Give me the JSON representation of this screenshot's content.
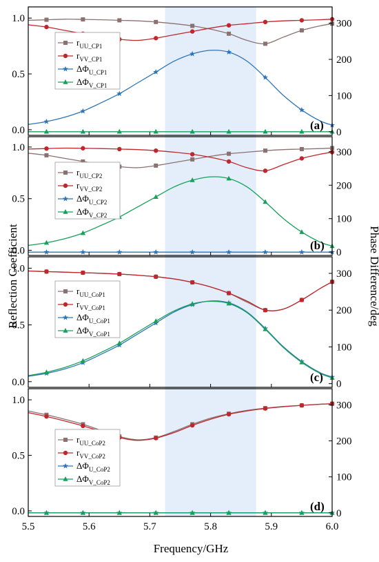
{
  "chart_data": {
    "type": "line",
    "xlabel": "Frequency/GHz",
    "ylabel_left": "Reflection Coefficient",
    "ylabel_right": "Phase Difference/deg",
    "xlim": [
      5.5,
      6.0
    ],
    "xticks": [
      "5.5",
      "5.6",
      "5.7",
      "5.8",
      "5.9",
      "6.0"
    ],
    "ylim_left": [
      -0.05,
      1.1
    ],
    "yticks_left": [
      "0.0",
      "0.5",
      "1.0"
    ],
    "ylim_right": [
      -10,
      345
    ],
    "yticks_right": [
      "0",
      "100",
      "200",
      "300"
    ],
    "highlight_band": [
      5.725,
      5.875
    ],
    "colors": {
      "rUU": "#8b7170",
      "rVV": "#c0272d",
      "phiU": "#2e75b6",
      "phiV": "#16a05a",
      "band": "#e3eefa"
    },
    "panels": [
      {
        "label": "(a)",
        "series": [
          {
            "base": "r",
            "sub": "UU_CP1",
            "color_key": "rUU",
            "marker": "square",
            "axis": "left",
            "x": [
              5.5,
              5.53,
              5.56,
              5.59,
              5.62,
              5.65,
              5.68,
              5.71,
              5.74,
              5.77,
              5.8,
              5.83,
              5.86,
              5.89,
              5.92,
              5.95,
              5.98,
              6.0
            ],
            "y": [
              0.98,
              0.985,
              0.99,
              0.988,
              0.985,
              0.98,
              0.975,
              0.965,
              0.95,
              0.93,
              0.9,
              0.86,
              0.8,
              0.77,
              0.83,
              0.89,
              0.93,
              0.95
            ]
          },
          {
            "base": "r",
            "sub": "VV_CP1",
            "color_key": "rVV",
            "marker": "circle",
            "axis": "left",
            "x": [
              5.5,
              5.53,
              5.56,
              5.59,
              5.62,
              5.65,
              5.68,
              5.71,
              5.74,
              5.77,
              5.8,
              5.83,
              5.86,
              5.89,
              5.92,
              5.95,
              5.98,
              6.0
            ],
            "y": [
              0.94,
              0.92,
              0.89,
              0.86,
              0.83,
              0.81,
              0.8,
              0.82,
              0.85,
              0.88,
              0.91,
              0.935,
              0.95,
              0.965,
              0.975,
              0.98,
              0.985,
              0.99
            ]
          },
          {
            "base": "ΔΦ",
            "sub": "U_CP1",
            "color_key": "phiU",
            "marker": "star",
            "axis": "right",
            "x": [
              5.5,
              5.53,
              5.56,
              5.59,
              5.62,
              5.65,
              5.68,
              5.71,
              5.74,
              5.77,
              5.8,
              5.83,
              5.86,
              5.89,
              5.92,
              5.95,
              5.98,
              6.0
            ],
            "y": [
              20,
              28,
              40,
              57,
              80,
              105,
              135,
              165,
              195,
              215,
              225,
              220,
              195,
              150,
              100,
              60,
              30,
              18
            ]
          },
          {
            "base": "ΔΦ",
            "sub": "V_CP1",
            "color_key": "phiV",
            "marker": "triangle",
            "axis": "right",
            "x": [
              5.5,
              5.53,
              5.56,
              5.59,
              5.62,
              5.65,
              5.68,
              5.71,
              5.74,
              5.77,
              5.8,
              5.83,
              5.86,
              5.89,
              5.92,
              5.95,
              5.98,
              6.0
            ],
            "y": [
              0,
              0,
              0,
              0,
              0,
              0,
              0,
              0,
              0,
              0,
              0,
              0,
              0,
              0,
              0,
              0,
              0,
              0
            ]
          }
        ]
      },
      {
        "label": "(b)",
        "series": [
          {
            "base": "r",
            "sub": "UU_CP2",
            "color_key": "rUU",
            "marker": "square",
            "axis": "left",
            "x": [
              5.5,
              5.53,
              5.56,
              5.59,
              5.62,
              5.65,
              5.68,
              5.71,
              5.74,
              5.77,
              5.8,
              5.83,
              5.86,
              5.89,
              5.92,
              5.95,
              5.98,
              6.0
            ],
            "y": [
              0.94,
              0.92,
              0.89,
              0.86,
              0.83,
              0.81,
              0.8,
              0.82,
              0.85,
              0.88,
              0.91,
              0.935,
              0.95,
              0.965,
              0.975,
              0.98,
              0.985,
              0.99
            ]
          },
          {
            "base": "r",
            "sub": "VV_CP2",
            "color_key": "rVV",
            "marker": "circle",
            "axis": "left",
            "x": [
              5.5,
              5.53,
              5.56,
              5.59,
              5.62,
              5.65,
              5.68,
              5.71,
              5.74,
              5.77,
              5.8,
              5.83,
              5.86,
              5.89,
              5.92,
              5.95,
              5.98,
              6.0
            ],
            "y": [
              0.98,
              0.985,
              0.99,
              0.988,
              0.985,
              0.98,
              0.975,
              0.965,
              0.95,
              0.93,
              0.9,
              0.86,
              0.8,
              0.77,
              0.83,
              0.89,
              0.93,
              0.95
            ]
          },
          {
            "base": "ΔΦ",
            "sub": "U_CP2",
            "color_key": "phiU",
            "marker": "star",
            "axis": "right",
            "x": [
              5.5,
              5.53,
              5.56,
              5.59,
              5.62,
              5.65,
              5.68,
              5.71,
              5.74,
              5.77,
              5.8,
              5.83,
              5.86,
              5.89,
              5.92,
              5.95,
              5.98,
              6.0
            ],
            "y": [
              0,
              0,
              0,
              0,
              0,
              0,
              0,
              0,
              0,
              0,
              0,
              0,
              0,
              0,
              0,
              0,
              0,
              0
            ]
          },
          {
            "base": "ΔΦ",
            "sub": "V_CP2",
            "color_key": "phiV",
            "marker": "triangle",
            "axis": "right",
            "x": [
              5.5,
              5.53,
              5.56,
              5.59,
              5.62,
              5.65,
              5.68,
              5.71,
              5.74,
              5.77,
              5.8,
              5.83,
              5.86,
              5.89,
              5.92,
              5.95,
              5.98,
              6.0
            ],
            "y": [
              20,
              28,
              40,
              57,
              80,
              105,
              135,
              165,
              195,
              215,
              225,
              220,
              195,
              150,
              100,
              60,
              30,
              18
            ]
          }
        ]
      },
      {
        "label": "(c)",
        "series": [
          {
            "base": "r",
            "sub": "UU_CoP1",
            "color_key": "rUU",
            "marker": "square",
            "axis": "left",
            "x": [
              5.5,
              5.53,
              5.56,
              5.59,
              5.62,
              5.65,
              5.68,
              5.71,
              5.74,
              5.77,
              5.8,
              5.83,
              5.86,
              5.89,
              5.92,
              5.95,
              5.98,
              6.0
            ],
            "y": [
              0.975,
              0.97,
              0.965,
              0.96,
              0.955,
              0.948,
              0.938,
              0.925,
              0.905,
              0.875,
              0.835,
              0.78,
              0.7,
              0.63,
              0.64,
              0.72,
              0.82,
              0.88
            ]
          },
          {
            "base": "r",
            "sub": "VV_CoP1",
            "color_key": "rVV",
            "marker": "circle",
            "axis": "left",
            "x": [
              5.5,
              5.53,
              5.56,
              5.59,
              5.62,
              5.65,
              5.68,
              5.71,
              5.74,
              5.77,
              5.8,
              5.83,
              5.86,
              5.89,
              5.92,
              5.95,
              5.98,
              6.0
            ],
            "y": [
              0.975,
              0.97,
              0.965,
              0.96,
              0.955,
              0.948,
              0.938,
              0.925,
              0.905,
              0.875,
              0.835,
              0.78,
              0.71,
              0.63,
              0.64,
              0.72,
              0.82,
              0.88
            ]
          },
          {
            "base": "ΔΦ",
            "sub": "U_CoP1",
            "color_key": "phiU",
            "marker": "star",
            "axis": "right",
            "x": [
              5.5,
              5.53,
              5.56,
              5.59,
              5.62,
              5.65,
              5.68,
              5.71,
              5.74,
              5.77,
              5.8,
              5.83,
              5.86,
              5.89,
              5.92,
              5.95,
              5.98,
              6.0
            ],
            "y": [
              20,
              28,
              40,
              57,
              80,
              105,
              135,
              165,
              195,
              215,
              225,
              220,
              195,
              150,
              100,
              60,
              30,
              18
            ]
          },
          {
            "base": "ΔΦ",
            "sub": "V_CoP1",
            "color_key": "phiV",
            "marker": "triangle",
            "axis": "right",
            "x": [
              5.5,
              5.53,
              5.56,
              5.59,
              5.62,
              5.65,
              5.68,
              5.71,
              5.74,
              5.77,
              5.8,
              5.83,
              5.86,
              5.89,
              5.92,
              5.95,
              5.98,
              6.0
            ],
            "y": [
              22,
              31,
              44,
              62,
              85,
              110,
              140,
              170,
              198,
              217,
              224,
              218,
              193,
              148,
              98,
              58,
              28,
              16
            ]
          }
        ]
      },
      {
        "label": "(d)",
        "series": [
          {
            "base": "r",
            "sub": "UU_CoP2",
            "color_key": "rUU",
            "marker": "square",
            "axis": "left",
            "x": [
              5.5,
              5.53,
              5.56,
              5.59,
              5.62,
              5.65,
              5.68,
              5.71,
              5.74,
              5.77,
              5.8,
              5.83,
              5.86,
              5.89,
              5.92,
              5.95,
              5.98,
              6.0
            ],
            "y": [
              0.9,
              0.865,
              0.825,
              0.78,
              0.725,
              0.67,
              0.64,
              0.66,
              0.715,
              0.78,
              0.835,
              0.875,
              0.905,
              0.925,
              0.94,
              0.95,
              0.96,
              0.965
            ]
          },
          {
            "base": "r",
            "sub": "VV_CoP2",
            "color_key": "rVV",
            "marker": "circle",
            "axis": "left",
            "x": [
              5.5,
              5.53,
              5.56,
              5.59,
              5.62,
              5.65,
              5.68,
              5.71,
              5.74,
              5.77,
              5.8,
              5.83,
              5.86,
              5.89,
              5.92,
              5.95,
              5.98,
              6.0
            ],
            "y": [
              0.885,
              0.85,
              0.81,
              0.765,
              0.715,
              0.66,
              0.635,
              0.655,
              0.705,
              0.77,
              0.825,
              0.87,
              0.9,
              0.922,
              0.938,
              0.95,
              0.96,
              0.965
            ]
          },
          {
            "base": "ΔΦ",
            "sub": "U_CoP2",
            "color_key": "phiU",
            "marker": "star",
            "axis": "right",
            "x": [
              5.5,
              5.53,
              5.56,
              5.59,
              5.62,
              5.65,
              5.68,
              5.71,
              5.74,
              5.77,
              5.8,
              5.83,
              5.86,
              5.89,
              5.92,
              5.95,
              5.98,
              6.0
            ],
            "y": [
              0,
              0,
              0,
              0,
              0,
              0,
              0,
              0,
              0,
              0,
              0,
              0,
              0,
              0,
              0,
              0,
              0,
              0
            ]
          },
          {
            "base": "ΔΦ",
            "sub": "V_CoP2",
            "color_key": "phiV",
            "marker": "triangle",
            "axis": "right",
            "x": [
              5.5,
              5.53,
              5.56,
              5.59,
              5.62,
              5.65,
              5.68,
              5.71,
              5.74,
              5.77,
              5.8,
              5.83,
              5.86,
              5.89,
              5.92,
              5.95,
              5.98,
              6.0
            ],
            "y": [
              0,
              0,
              0,
              0,
              0,
              0,
              0,
              0,
              0,
              0,
              0,
              0,
              0,
              0,
              0,
              0,
              0,
              0
            ]
          }
        ]
      }
    ]
  }
}
